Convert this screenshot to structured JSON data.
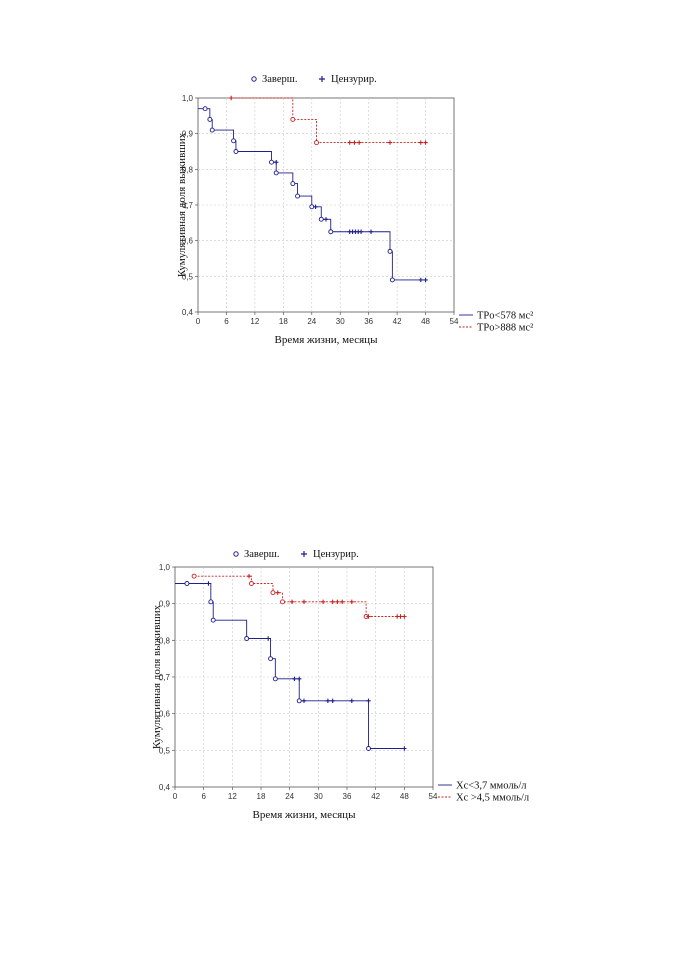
{
  "legend_top": {
    "completed": "Заверш.",
    "censored": "Цензурир."
  },
  "chart_data": [
    {
      "type": "line",
      "subtype": "kaplan-meier",
      "xlabel": "Время жизни, месяцы",
      "ylabel": "Кумулятивная доля выживших",
      "xlim": [
        0,
        54
      ],
      "ylim": [
        0.4,
        1.0
      ],
      "xticks": [
        "0",
        "6",
        "12",
        "18",
        "24",
        "30",
        "36",
        "42",
        "48",
        "54"
      ],
      "yticks": [
        "0,4",
        "0,5",
        "0,6",
        "0,7",
        "0,8",
        "0,9",
        "1,0"
      ],
      "grid": true,
      "legend_position": "bottom-right",
      "series": [
        {
          "name": "TPo<578 мс²",
          "color": "#1f1f8f",
          "style": "solid",
          "steps": [
            [
              0,
              0.97
            ],
            [
              2.5,
              0.94
            ],
            [
              3,
              0.91
            ],
            [
              7.5,
              0.88
            ],
            [
              8,
              0.85
            ],
            [
              15.5,
              0.82
            ],
            [
              16.5,
              0.79
            ],
            [
              20,
              0.76
            ],
            [
              21,
              0.725
            ],
            [
              24,
              0.695
            ],
            [
              26,
              0.66
            ],
            [
              28,
              0.625
            ],
            [
              40.5,
              0.57
            ],
            [
              41,
              0.49
            ],
            [
              48,
              0.49
            ]
          ],
          "completed": [
            [
              1.5,
              0.97
            ],
            [
              2.5,
              0.94
            ],
            [
              3,
              0.91
            ],
            [
              7.5,
              0.88
            ],
            [
              8,
              0.85
            ],
            [
              15.5,
              0.82
            ],
            [
              16.5,
              0.79
            ],
            [
              20,
              0.76
            ],
            [
              21,
              0.725
            ],
            [
              24,
              0.695
            ],
            [
              26,
              0.66
            ],
            [
              28,
              0.625
            ],
            [
              40.5,
              0.57
            ],
            [
              41,
              0.49
            ]
          ],
          "censored": [
            [
              16.5,
              0.82
            ],
            [
              24.8,
              0.695
            ],
            [
              27,
              0.66
            ],
            [
              32,
              0.625
            ],
            [
              32.6,
              0.625
            ],
            [
              33.2,
              0.625
            ],
            [
              33.8,
              0.625
            ],
            [
              34.4,
              0.625
            ],
            [
              36.5,
              0.625
            ],
            [
              47,
              0.49
            ],
            [
              48,
              0.49
            ]
          ]
        },
        {
          "name": "TPo>888 мс²",
          "color": "#cc2222",
          "style": "dashed",
          "steps": [
            [
              7,
              1.0
            ],
            [
              20,
              0.94
            ],
            [
              25,
              0.875
            ],
            [
              48,
              0.875
            ]
          ],
          "completed": [
            [
              20,
              0.94
            ],
            [
              25,
              0.875
            ]
          ],
          "censored": [
            [
              7,
              1.0
            ],
            [
              32,
              0.875
            ],
            [
              33,
              0.875
            ],
            [
              34,
              0.875
            ],
            [
              40.5,
              0.875
            ],
            [
              47,
              0.875
            ],
            [
              48,
              0.875
            ]
          ]
        }
      ]
    },
    {
      "type": "line",
      "subtype": "kaplan-meier",
      "xlabel": "Время жизни, месяцы",
      "ylabel": "Кумулятивная доля выживших",
      "xlim": [
        0,
        54
      ],
      "ylim": [
        0.4,
        1.0
      ],
      "xticks": [
        "0",
        "6",
        "12",
        "18",
        "24",
        "30",
        "36",
        "42",
        "48",
        "54"
      ],
      "yticks": [
        "0,4",
        "0,5",
        "0,6",
        "0,7",
        "0,8",
        "0,9",
        "1,0"
      ],
      "grid": true,
      "legend_position": "bottom-right",
      "series": [
        {
          "name": "Xc<3,7 ммоль/л",
          "color": "#1f1f8f",
          "style": "solid",
          "steps": [
            [
              0,
              0.955
            ],
            [
              7.5,
              0.905
            ],
            [
              8,
              0.855
            ],
            [
              15,
              0.805
            ],
            [
              20,
              0.75
            ],
            [
              21,
              0.695
            ],
            [
              26,
              0.635
            ],
            [
              40.5,
              0.505
            ],
            [
              48,
              0.505
            ]
          ],
          "completed": [
            [
              2.5,
              0.955
            ],
            [
              7.5,
              0.905
            ],
            [
              8,
              0.855
            ],
            [
              15,
              0.805
            ],
            [
              20,
              0.75
            ],
            [
              21,
              0.695
            ],
            [
              26,
              0.635
            ],
            [
              40.5,
              0.505
            ]
          ],
          "censored": [
            [
              7,
              0.955
            ],
            [
              19.5,
              0.805
            ],
            [
              25,
              0.695
            ],
            [
              26,
              0.695
            ],
            [
              27,
              0.635
            ],
            [
              32,
              0.635
            ],
            [
              33,
              0.635
            ],
            [
              37,
              0.635
            ],
            [
              40.5,
              0.635
            ],
            [
              48,
              0.505
            ]
          ]
        },
        {
          "name": "Xc >4,5 ммоль/л",
          "color": "#cc2222",
          "style": "dashed",
          "steps": [
            [
              4,
              0.975
            ],
            [
              16,
              0.955
            ],
            [
              20.5,
              0.93
            ],
            [
              22.5,
              0.905
            ],
            [
              40,
              0.865
            ],
            [
              48,
              0.865
            ]
          ],
          "completed": [
            [
              4,
              0.975
            ],
            [
              16,
              0.955
            ],
            [
              20.5,
              0.93
            ],
            [
              22.5,
              0.905
            ],
            [
              40,
              0.865
            ]
          ],
          "censored": [
            [
              15.5,
              0.975
            ],
            [
              21.5,
              0.93
            ],
            [
              24.5,
              0.905
            ],
            [
              27,
              0.905
            ],
            [
              31,
              0.905
            ],
            [
              33,
              0.905
            ],
            [
              34,
              0.905
            ],
            [
              35,
              0.905
            ],
            [
              37,
              0.905
            ],
            [
              40.5,
              0.865
            ],
            [
              46.5,
              0.865
            ],
            [
              47.2,
              0.865
            ],
            [
              48,
              0.865
            ]
          ]
        }
      ]
    }
  ]
}
